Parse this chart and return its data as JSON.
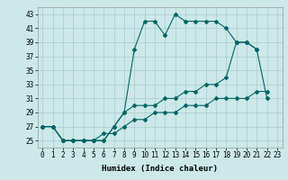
{
  "title": "",
  "xlabel": "Humidex (Indice chaleur)",
  "background_color": "#cce8e8",
  "grid_color": "#aacccc",
  "line_color": "#006666",
  "x_values": [
    0,
    1,
    2,
    3,
    4,
    5,
    6,
    7,
    8,
    9,
    10,
    11,
    12,
    13,
    14,
    15,
    16,
    17,
    18,
    19,
    20,
    21,
    22,
    23
  ],
  "line1": [
    27,
    27,
    25,
    25,
    25,
    25,
    25,
    27,
    29,
    38,
    42,
    42,
    40,
    43,
    42,
    42,
    42,
    42,
    41,
    39,
    39,
    38,
    null,
    null
  ],
  "line2": [
    27,
    27,
    25,
    25,
    25,
    25,
    25,
    27,
    29,
    30,
    30,
    30,
    31,
    31,
    32,
    32,
    33,
    33,
    34,
    39,
    39,
    38,
    31,
    null
  ],
  "line3": [
    27,
    27,
    25,
    25,
    25,
    25,
    26,
    26,
    27,
    28,
    28,
    29,
    29,
    29,
    30,
    30,
    30,
    31,
    31,
    31,
    31,
    32,
    32,
    null
  ],
  "ylim": [
    24.0,
    44.0
  ],
  "xlim": [
    -0.5,
    23.5
  ],
  "yticks": [
    25,
    27,
    29,
    31,
    33,
    35,
    37,
    39,
    41,
    43
  ],
  "xticks": [
    0,
    1,
    2,
    3,
    4,
    5,
    6,
    7,
    8,
    9,
    10,
    11,
    12,
    13,
    14,
    15,
    16,
    17,
    18,
    19,
    20,
    21,
    22,
    23
  ],
  "tick_fontsize": 5.5,
  "xlabel_fontsize": 6.5
}
